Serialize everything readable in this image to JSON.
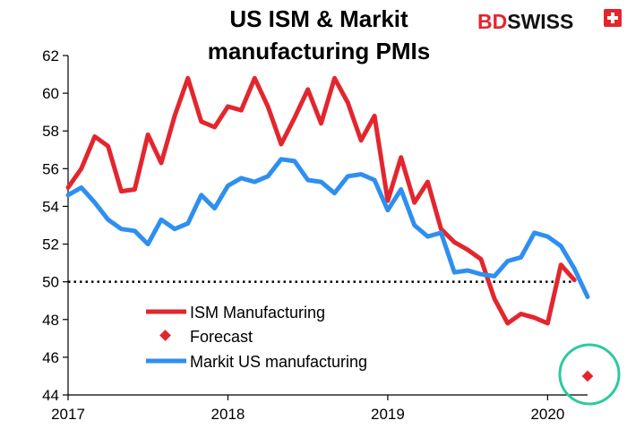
{
  "brand": {
    "part1": "BD",
    "part2": "SWISS",
    "color1": "#e3262e",
    "color2": "#111111",
    "flag_color": "#e3262e"
  },
  "colors": {
    "ism": "#e3262e",
    "markit": "#2e8ff0",
    "forecast": "#e3262e",
    "highlight_circle": "#2ec9a0",
    "reference_line": "#000000"
  },
  "chart_data": {
    "type": "line",
    "title_lines": [
      "US ISM & Markit",
      "manufacturing PMIs"
    ],
    "xlabel": "",
    "ylabel": "",
    "xlim": [
      2017.0,
      2020.25
    ],
    "ylim": [
      44,
      62
    ],
    "yticks": [
      44,
      46,
      48,
      50,
      52,
      54,
      56,
      58,
      60,
      62
    ],
    "xticks": [
      {
        "value": 2017,
        "label": "2017"
      },
      {
        "value": 2018,
        "label": "2018"
      },
      {
        "value": 2019,
        "label": "2019"
      },
      {
        "value": 2020,
        "label": "2020"
      }
    ],
    "grid": false,
    "reference_line": {
      "y": 50,
      "style": "dotted"
    },
    "legend_position": "center-left",
    "series": [
      {
        "name": "ISM Manufacturing",
        "kind": "line",
        "x": [
          2017.0,
          2017.083,
          2017.167,
          2017.25,
          2017.333,
          2017.417,
          2017.5,
          2017.583,
          2017.667,
          2017.75,
          2017.833,
          2017.917,
          2018.0,
          2018.083,
          2018.167,
          2018.25,
          2018.333,
          2018.417,
          2018.5,
          2018.583,
          2018.667,
          2018.75,
          2018.833,
          2018.917,
          2019.0,
          2019.083,
          2019.167,
          2019.25,
          2019.333,
          2019.417,
          2019.5,
          2019.583,
          2019.667,
          2019.75,
          2019.833,
          2019.917,
          2020.0,
          2020.083,
          2020.167
        ],
        "values": [
          55.0,
          56.0,
          57.7,
          57.2,
          54.8,
          54.9,
          57.8,
          56.3,
          58.8,
          60.8,
          58.5,
          58.2,
          59.3,
          59.1,
          60.8,
          59.3,
          57.3,
          58.7,
          60.2,
          58.4,
          60.8,
          59.5,
          57.5,
          58.8,
          54.3,
          56.6,
          54.2,
          55.3,
          52.8,
          52.1,
          51.7,
          51.2,
          49.1,
          47.8,
          48.3,
          48.1,
          47.8,
          50.9,
          50.1
        ]
      },
      {
        "name": "Forecast",
        "kind": "marker",
        "x": [
          2020.25
        ],
        "values": [
          45.0
        ]
      },
      {
        "name": "Markit US manufacturing",
        "kind": "line",
        "x": [
          2017.0,
          2017.083,
          2017.167,
          2017.25,
          2017.333,
          2017.417,
          2017.5,
          2017.583,
          2017.667,
          2017.75,
          2017.833,
          2017.917,
          2018.0,
          2018.083,
          2018.167,
          2018.25,
          2018.333,
          2018.417,
          2018.5,
          2018.583,
          2018.667,
          2018.75,
          2018.833,
          2018.917,
          2019.0,
          2019.083,
          2019.167,
          2019.25,
          2019.333,
          2019.417,
          2019.5,
          2019.583,
          2019.667,
          2019.75,
          2019.833,
          2019.917,
          2020.0,
          2020.083,
          2020.167,
          2020.25
        ],
        "values": [
          54.6,
          55.0,
          54.2,
          53.3,
          52.8,
          52.7,
          52.0,
          53.3,
          52.8,
          53.1,
          54.6,
          53.9,
          55.1,
          55.5,
          55.3,
          55.6,
          56.5,
          56.4,
          55.4,
          55.3,
          54.7,
          55.6,
          55.7,
          55.4,
          53.8,
          54.9,
          53.0,
          52.4,
          52.6,
          50.5,
          50.6,
          50.4,
          50.3,
          51.1,
          51.3,
          52.6,
          52.4,
          51.9,
          50.7,
          49.2
        ]
      }
    ]
  }
}
